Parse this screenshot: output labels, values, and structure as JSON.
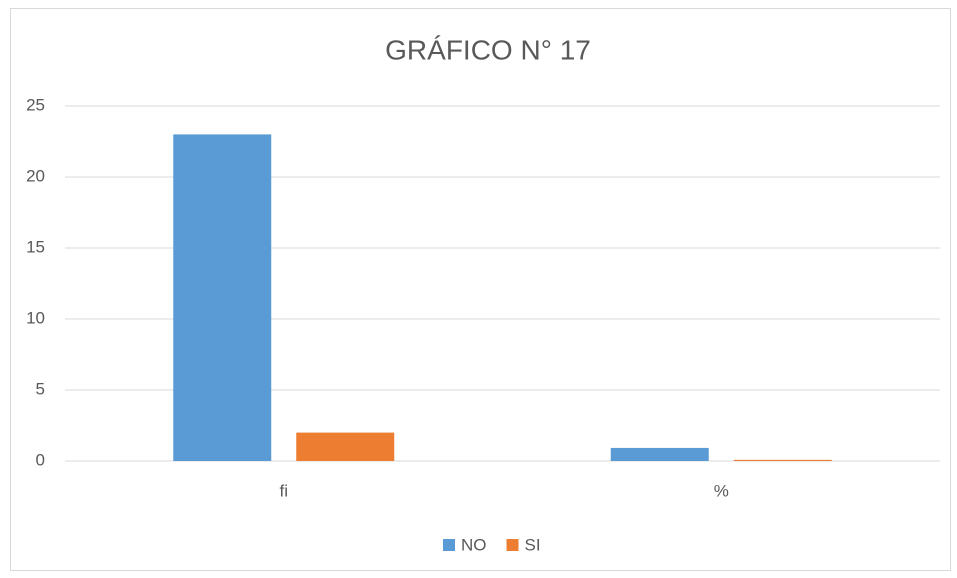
{
  "chart_data": {
    "type": "bar",
    "title": "GRÁFICO N° 17",
    "categories": [
      "fi",
      "%"
    ],
    "series": [
      {
        "name": "NO",
        "color": "#5b9bd5",
        "values": [
          23,
          0.92
        ]
      },
      {
        "name": "SI",
        "color": "#ed7d31",
        "values": [
          2,
          0.08
        ]
      }
    ],
    "ylim": [
      0,
      25
    ],
    "yticks": [
      0,
      5,
      10,
      15,
      20,
      25
    ],
    "grid": true,
    "legend": "bottom"
  }
}
